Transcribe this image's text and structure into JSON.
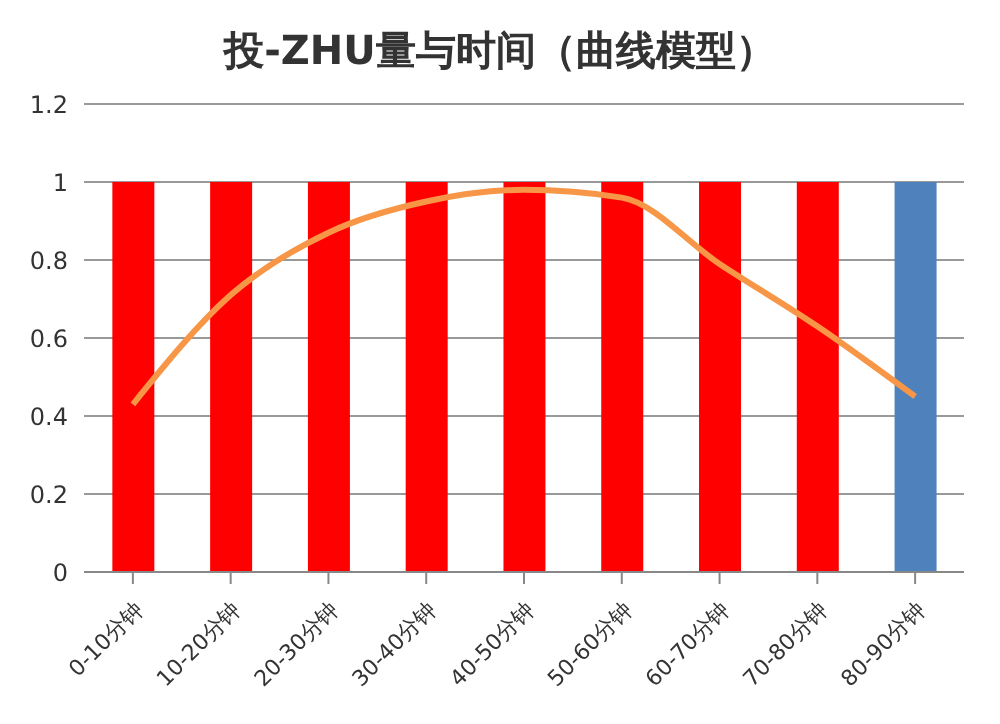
{
  "chart_data": {
    "type": "bar",
    "title": "投-ZHU量与时间（曲线模型）",
    "categories": [
      "0-10分钟",
      "10-20分钟",
      "20-30分钟",
      "30-40分钟",
      "40-50分钟",
      "50-60分钟",
      "60-70分钟",
      "70-80分钟",
      "80-90分钟"
    ],
    "series": [
      {
        "values": [
          1,
          1,
          1,
          1,
          1,
          1,
          1,
          1,
          1
        ],
        "colors": [
          "#ff0000",
          "#ff0000",
          "#ff0000",
          "#ff0000",
          "#ff0000",
          "#ff0000",
          "#ff0000",
          "#ff0000",
          "#4f81bd"
        ]
      },
      {
        "type": "line",
        "color": "#f79646",
        "values": [
          0.43,
          0.71,
          0.87,
          0.95,
          0.98,
          0.96,
          0.79,
          0.63,
          0.45
        ]
      }
    ],
    "ylim": [
      0,
      1.2
    ],
    "yticks": [
      0,
      0.2,
      0.4,
      0.6,
      0.8,
      1,
      1.2
    ],
    "grid": "y",
    "marker": "none"
  }
}
